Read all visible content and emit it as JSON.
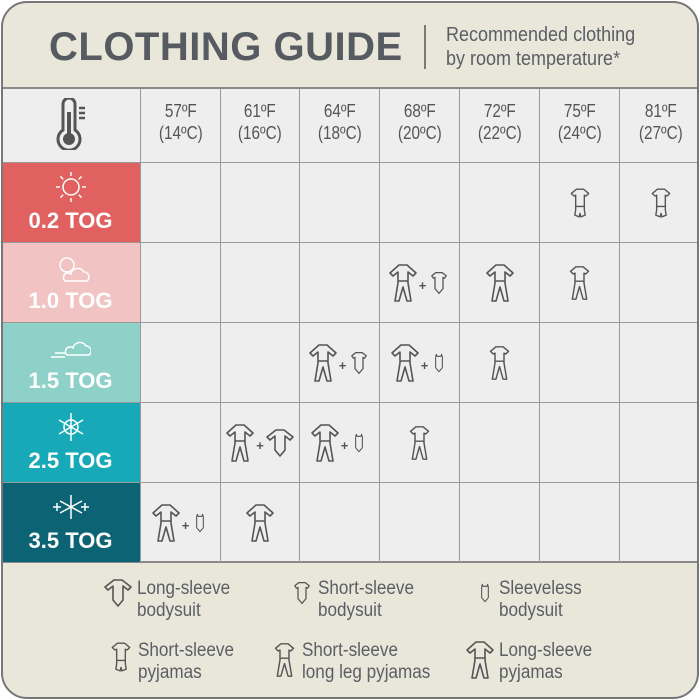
{
  "header": {
    "title": "CLOTHING GUIDE",
    "subtitle_line1": "Recommended clothing",
    "subtitle_line2": "by room temperature*"
  },
  "corner_icon": "thermometer-icon",
  "temperatures": [
    {
      "f": "57ºF",
      "c": "(14ºC)"
    },
    {
      "f": "61ºF",
      "c": "(16ºC)"
    },
    {
      "f": "64ºF",
      "c": "(18ºC)"
    },
    {
      "f": "68ºF",
      "c": "(20ºC)"
    },
    {
      "f": "72ºF",
      "c": "(22ºC)"
    },
    {
      "f": "75ºF",
      "c": "(24ºC)"
    },
    {
      "f": "81ºF",
      "c": "(27ºC)"
    }
  ],
  "joiner": "+",
  "rows": [
    {
      "label": "0.2 TOG",
      "icon": "sun-icon",
      "color": "#e0615f",
      "cells": [
        [],
        [],
        [],
        [],
        [],
        [
          "short-sleeve-pyjamas"
        ],
        [
          "short-sleeve-pyjamas"
        ]
      ]
    },
    {
      "label": "1.0 TOG",
      "icon": "sun-cloud-icon",
      "color": "#f1c3c2",
      "cells": [
        [],
        [],
        [],
        [
          "long-sleeve-pyjamas",
          "short-sleeve-bodysuit"
        ],
        [
          "long-sleeve-pyjamas"
        ],
        [
          "short-sleeve-long-leg-pyjamas"
        ],
        []
      ]
    },
    {
      "label": "1.5 TOG",
      "icon": "wind-cloud-icon",
      "color": "#8ed1c8",
      "cells": [
        [],
        [],
        [
          "long-sleeve-pyjamas",
          "short-sleeve-bodysuit"
        ],
        [
          "long-sleeve-pyjamas",
          "sleeveless-bodysuit"
        ],
        [
          "short-sleeve-long-leg-pyjamas"
        ],
        [],
        []
      ]
    },
    {
      "label": "2.5 TOG",
      "icon": "snowflake-icon",
      "color": "#17a9b8",
      "cells": [
        [],
        [
          "long-sleeve-pyjamas",
          "long-sleeve-bodysuit"
        ],
        [
          "long-sleeve-pyjamas",
          "sleeveless-bodysuit"
        ],
        [
          "short-sleeve-long-leg-pyjamas"
        ],
        [],
        [],
        []
      ]
    },
    {
      "label": "3.5 TOG",
      "icon": "snowflakes-icon",
      "color": "#0b6373",
      "cells": [
        [
          "long-sleeve-pyjamas",
          "sleeveless-bodysuit"
        ],
        [
          "long-sleeve-pyjamas"
        ],
        [],
        [],
        [],
        [],
        []
      ]
    }
  ],
  "legend": [
    {
      "icon": "long-sleeve-bodysuit",
      "line1": "Long-sleeve",
      "line2": "bodysuit"
    },
    {
      "icon": "short-sleeve-bodysuit",
      "line1": "Short-sleeve",
      "line2": "bodysuit"
    },
    {
      "icon": "sleeveless-bodysuit",
      "line1": "Sleeveless",
      "line2": "bodysuit"
    },
    {
      "icon": "short-sleeve-pyjamas",
      "line1": "Short-sleeve",
      "line2": "pyjamas"
    },
    {
      "icon": "short-sleeve-long-leg-pyjamas",
      "line1": "Short-sleeve",
      "line2": "long leg pyjamas"
    },
    {
      "icon": "long-sleeve-pyjamas",
      "line1": "Long-sleeve",
      "line2": "pyjamas"
    }
  ],
  "colors": {
    "background": "#e9e6da",
    "grid": "#eeeeee",
    "text": "#555b61"
  }
}
